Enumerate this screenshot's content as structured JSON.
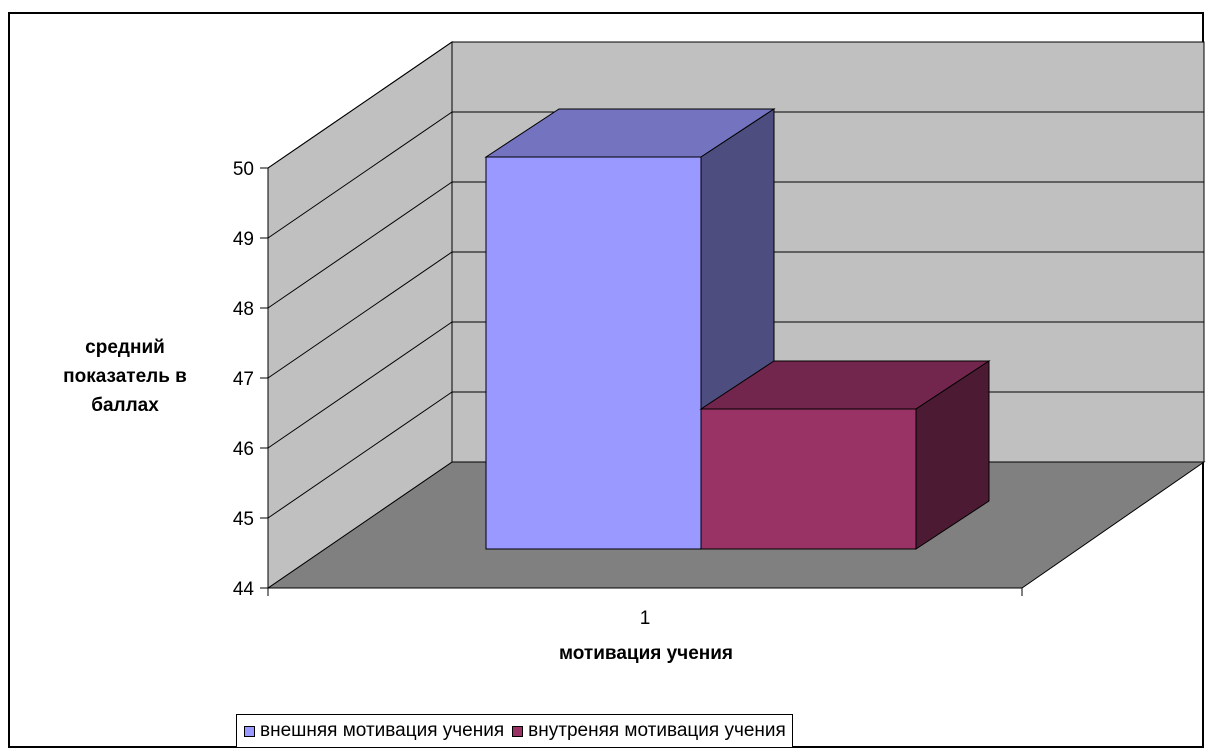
{
  "chart_data": {
    "type": "bar",
    "categories": [
      "1"
    ],
    "series": [
      {
        "name": "внешняя мотивация учения",
        "values": [
          50.0
        ],
        "color": "#9999ff"
      },
      {
        "name": "внутреняя мотивация учения",
        "values": [
          46.4
        ],
        "color": "#993366"
      }
    ],
    "xlabel": "мотивация учения",
    "ylabel": "средний показатель в баллах",
    "ylim": [
      44,
      50
    ],
    "yticks": [
      "44",
      "45",
      "46",
      "47",
      "48",
      "49",
      "50"
    ],
    "grid": true,
    "legend_position": "bottom",
    "style": "3d-clustered-column",
    "colors": {
      "wall": "#c0c0c0",
      "floor": "#808080"
    }
  }
}
